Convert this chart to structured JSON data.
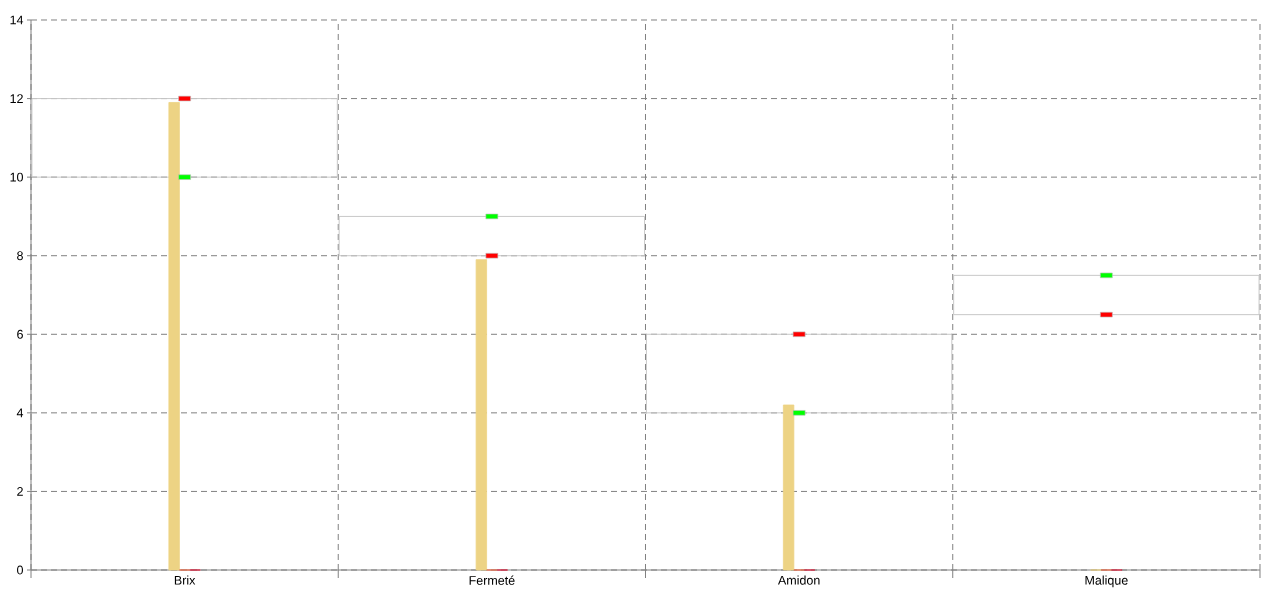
{
  "chart_data": {
    "type": "bar",
    "categories": [
      "Brix",
      "Fermeté",
      "Amidon",
      "Malique"
    ],
    "ylim": [
      0,
      14
    ],
    "yticks": [
      0,
      2,
      4,
      6,
      8,
      10,
      12,
      14
    ],
    "grid": true,
    "series": [
      {
        "color": "#c8c8c8",
        "base": [
          10,
          8,
          4,
          6.5
        ],
        "values": [
          2,
          1,
          2,
          1
        ]
      },
      {
        "color": "#edd384",
        "values": [
          11.9,
          7.9,
          4.2,
          0
        ]
      },
      {
        "color": "#f06e4c",
        "values": [
          0,
          0,
          0,
          0
        ]
      },
      {
        "color": "#dc1e3c",
        "values": [
          0,
          0,
          0,
          0
        ]
      },
      {
        "type": "scatter",
        "color": "#00ff00",
        "marker": "square",
        "x": [
          "Brix",
          "Fermeté",
          "Amidon",
          "Malique"
        ],
        "values": [
          10,
          9,
          4,
          7.5
        ]
      },
      {
        "type": "scatter",
        "color": "#ff0000",
        "marker": "square",
        "x": [
          "Brix",
          "Fermeté",
          "Amidon",
          "Malique"
        ],
        "values": [
          12,
          8,
          6,
          6.5
        ]
      }
    ]
  }
}
